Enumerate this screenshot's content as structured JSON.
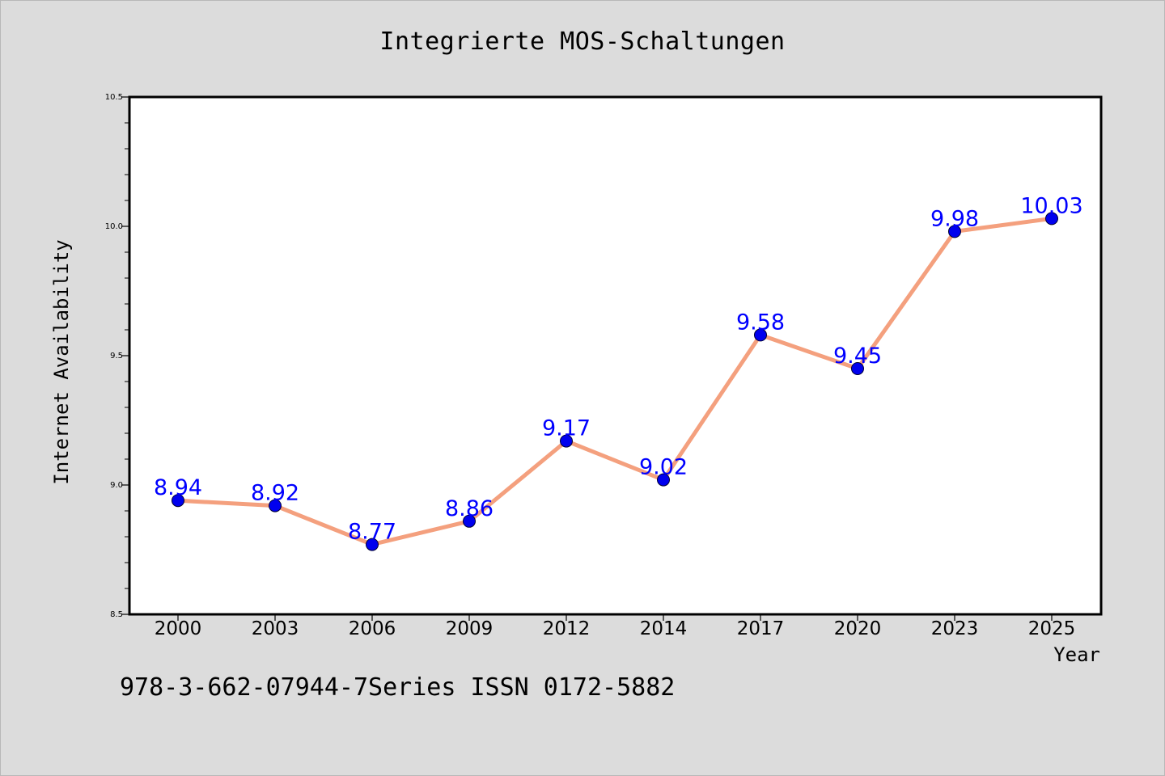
{
  "chart_data": {
    "type": "line",
    "title": "Integrierte MOS-Schaltungen",
    "xlabel": "Year",
    "ylabel": "Internet Availability",
    "categories": [
      "2000",
      "2003",
      "2006",
      "2009",
      "2012",
      "2014",
      "2017",
      "2020",
      "2023",
      "2025"
    ],
    "series": [
      {
        "values": [
          8.94,
          8.92,
          8.77,
          8.86,
          9.17,
          9.02,
          9.58,
          9.45,
          9.98,
          10.03
        ],
        "labels": [
          "8.94",
          "8.92",
          "8.77",
          "8.86",
          "9.17",
          "9.02",
          "9.58",
          "9.45",
          "9.98",
          "10.03"
        ],
        "line_color": "#f4a07e",
        "marker_color": "#0000ee",
        "label_color": "#0000ff"
      }
    ],
    "ylim": [
      8.5,
      10.5
    ],
    "yticks": [
      "8.5",
      "9.0",
      "9.5",
      "10.0",
      "10.5"
    ],
    "ytick_values": [
      8.5,
      9.0,
      9.5,
      10.0,
      10.5
    ],
    "grid": false,
    "legend": "none"
  },
  "footnote": "978-3-662-07944-7Series ISSN 0172-5882"
}
